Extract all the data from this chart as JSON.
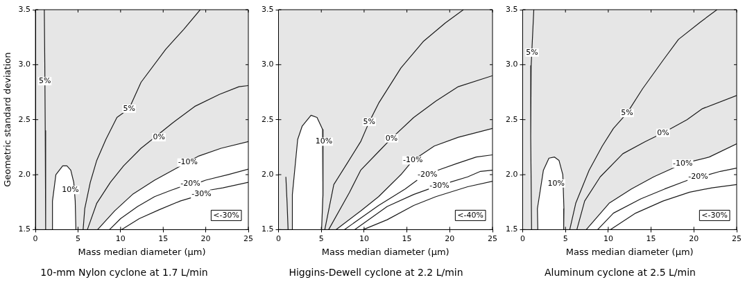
{
  "chart_data": [
    {
      "type": "line",
      "title": "10-mm Nylon cyclone at 1.7 L/min",
      "xlabel": "Mass median diameter (µm)",
      "ylabel": "Geometric standard deviation",
      "xlim": [
        0,
        25
      ],
      "ylim": [
        1.5,
        3.5
      ],
      "xticks": [
        0,
        5,
        10,
        15,
        20,
        25
      ],
      "yticks": [
        {
          "value": 1.5,
          "label": "1.5"
        },
        {
          "value": 2,
          "label": "2.0"
        },
        {
          "value": 2.5,
          "label": "2.5"
        },
        {
          "value": 3,
          "label": "3.0"
        },
        {
          "value": 3.5,
          "label": "3.5"
        }
      ],
      "marker": "none",
      "series": [
        {
          "type": "area",
          "color": "#1a1a1a",
          "x": [
            7.3,
            9.3,
            11.4,
            14,
            16.6,
            19.2,
            21.8,
            25
          ],
          "values": [
            1.5,
            1.67,
            1.82,
            1.95,
            2.06,
            2.17,
            2.24,
            2.3
          ]
        },
        {
          "type": "area",
          "color": "#1a1a1a",
          "x": [
            1.96,
            2.0,
            2.4,
            3.2,
            3.7,
            4.15,
            4.5,
            4.67,
            4.75
          ],
          "values": [
            1.5,
            1.76,
            2.0,
            2.08,
            2.08,
            2.04,
            1.93,
            1.76,
            1.5
          ]
        },
        {
          "color": "#1a1a1a",
          "x": [
            1.04,
            1.1,
            1.15,
            1.2
          ],
          "values": [
            3.5,
            3.0,
            2.4,
            1.5
          ]
        },
        {
          "color": "#1a1a1a",
          "x": [
            5.6,
            5.79,
            6.44,
            7.2,
            8.27,
            9.57,
            11.0,
            12.4,
            15.3,
            17.4,
            19.35
          ],
          "values": [
            1.5,
            1.69,
            1.93,
            2.13,
            2.32,
            2.52,
            2.6,
            2.84,
            3.14,
            3.32,
            3.5
          ]
        },
        {
          "color": "#1a1a1a",
          "x": [
            6.1,
            7.2,
            8.8,
            10.35,
            12.4,
            13.7,
            16.1,
            18.7,
            21.6,
            23.9,
            25
          ],
          "values": [
            1.5,
            1.74,
            1.93,
            2.08,
            2.24,
            2.32,
            2.47,
            2.62,
            2.73,
            2.8,
            2.81
          ]
        },
        {
          "color": "#1a1a1a",
          "x": [
            8.7,
            10,
            12,
            14,
            16,
            17.1,
            18.2,
            19.3,
            20,
            22.6,
            25
          ],
          "values": [
            1.5,
            1.6,
            1.71,
            1.8,
            1.86,
            1.89,
            null,
            1.93,
            1.95,
            2.0,
            2.05
          ]
        },
        {
          "color": "#1a1a1a",
          "x": [
            10.1,
            12.2,
            14.5,
            17,
            18.3,
            19.5,
            20.5,
            22,
            25
          ],
          "values": [
            1.5,
            1.6,
            1.68,
            1.76,
            1.79,
            null,
            1.86,
            1.88,
            1.93
          ]
        }
      ],
      "annotations": [
        {
          "text": "5%",
          "x": 1.1,
          "y": 2.85
        },
        {
          "text": "10%",
          "x": 4.1,
          "y": 1.86
        },
        {
          "text": "5%",
          "x": 11,
          "y": 2.6
        },
        {
          "text": "0%",
          "x": 14.5,
          "y": 2.34
        },
        {
          "text": "-10%",
          "x": 17.9,
          "y": 2.11
        },
        {
          "text": "-20%",
          "x": 18.2,
          "y": 1.92
        },
        {
          "text": "-30%",
          "x": 19.5,
          "y": 1.82
        },
        "<-30%"
      ]
    },
    {
      "type": "line",
      "title": "Higgins-Dewell cyclone at 2.2 L/min",
      "xlabel": "Mass median diameter (µm)",
      "xlim": [
        0,
        25
      ],
      "ylim": [
        1.5,
        3.5
      ],
      "xticks": [
        0,
        5,
        10,
        15,
        20,
        25
      ],
      "yticks": [
        {
          "value": 1.5,
          "label": "1.5"
        },
        {
          "value": 2,
          "label": "2.0"
        },
        {
          "value": 2.5,
          "label": "2.5"
        },
        {
          "value": 3,
          "label": "3.0"
        },
        {
          "value": 3.5,
          "label": "3.5"
        }
      ],
      "marker": "none",
      "series": [
        {
          "type": "area",
          "color": "#1a1a1a",
          "x": [
            6.72,
            9.6,
            11.7,
            14.3,
            15.7,
            18.2,
            21,
            25
          ],
          "values": [
            1.5,
            1.67,
            1.8,
            2.0,
            2.13,
            2.26,
            2.34,
            2.42
          ]
        },
        {
          "type": "area",
          "color": "#1a1a1a",
          "x": [
            1.6,
            1.62,
            2.24,
            2.76,
            3.8,
            4.5,
            5.16,
            5.2,
            5.03
          ],
          "values": [
            1.5,
            1.82,
            2.32,
            2.44,
            2.54,
            2.52,
            2.41,
            1.82,
            1.5
          ]
        },
        {
          "color": "#1a1a1a",
          "x": [
            0.86,
            1.0,
            1.12
          ],
          "values": [
            1.98,
            1.75,
            1.5
          ]
        },
        {
          "color": "#1a1a1a",
          "x": [
            5.41,
            6.46,
            8.0,
            9.6,
            10.6,
            11.7,
            14.3,
            16.9,
            19.5,
            21.6
          ],
          "values": [
            1.5,
            1.91,
            2.1,
            2.3,
            2.48,
            2.65,
            2.97,
            3.21,
            3.38,
            3.5
          ]
        },
        {
          "color": "#1a1a1a",
          "x": [
            5.86,
            8.3,
            9.6,
            11.7,
            13.2,
            15.8,
            18.4,
            21,
            25
          ],
          "values": [
            1.5,
            1.84,
            2.04,
            2.21,
            2.33,
            2.52,
            2.67,
            2.8,
            2.9
          ]
        },
        {
          "color": "#1a1a1a",
          "x": [
            7.7,
            11.7,
            14.8,
            16.2,
            17.4,
            18.6,
            20.8,
            23.1,
            25
          ],
          "values": [
            1.5,
            1.72,
            1.87,
            1.95,
            null,
            2.04,
            2.1,
            2.16,
            2.18
          ]
        },
        {
          "color": "#1a1a1a",
          "x": [
            8.9,
            12.7,
            15.8,
            17.6,
            18.8,
            20,
            22.1,
            23.6,
            25
          ],
          "values": [
            1.5,
            1.71,
            1.82,
            1.87,
            null,
            1.93,
            1.98,
            2.03,
            2.04
          ]
        },
        {
          "color": "#1a1a1a",
          "x": [
            9.9,
            12.7,
            15.8,
            18.4,
            22.1,
            25
          ],
          "values": [
            1.5,
            1.59,
            1.72,
            1.8,
            1.89,
            1.94
          ]
        }
      ],
      "annotations": [
        {
          "text": "10%",
          "x": 5.3,
          "y": 2.3
        },
        {
          "text": "5%",
          "x": 10.6,
          "y": 2.48
        },
        {
          "text": "0%",
          "x": 13.2,
          "y": 2.33
        },
        {
          "text": "-10%",
          "x": 15.7,
          "y": 2.13
        },
        {
          "text": "-20%",
          "x": 17.4,
          "y": 2.0
        },
        {
          "text": "-30%",
          "x": 18.8,
          "y": 1.9
        },
        "<-40%"
      ]
    },
    {
      "type": "line",
      "title": "Aluminum cyclone at 2.5 L/min",
      "xlabel": "Mass median diameter (µm)",
      "xlim": [
        0,
        25
      ],
      "ylim": [
        1.5,
        3.5
      ],
      "xticks": [
        0,
        5,
        10,
        15,
        20,
        25
      ],
      "yticks": [
        {
          "value": 1.5,
          "label": "1.5"
        },
        {
          "value": 2,
          "label": "2.0"
        },
        {
          "value": 2.5,
          "label": "2.5"
        },
        {
          "value": 3,
          "label": "3.0"
        },
        {
          "value": 3.5,
          "label": "3.5"
        }
      ],
      "marker": "none",
      "series": [
        {
          "type": "area",
          "color": "#1a1a1a",
          "x": [
            7.43,
            10.1,
            12.7,
            15.3,
            18.7,
            21.8,
            25
          ],
          "values": [
            1.5,
            1.74,
            1.87,
            1.98,
            2.1,
            2.16,
            2.28
          ]
        },
        {
          "type": "area",
          "color": "#1a1a1a",
          "x": [
            1.77,
            1.72,
            2.42,
            3.07,
            3.72,
            4.24,
            4.69,
            4.82,
            4.79
          ],
          "values": [
            1.5,
            1.69,
            2.04,
            2.15,
            2.16,
            2.13,
            2.0,
            1.69,
            1.5
          ]
        },
        {
          "color": "#1a1a1a",
          "x": [
            1.3,
            0.99,
            0.94,
            1.04
          ],
          "values": [
            3.5,
            2.99,
            2.34,
            1.5
          ]
        },
        {
          "color": "#1a1a1a",
          "x": [
            5.5,
            6.2,
            7.76,
            9.3,
            10.6,
            12.2,
            14,
            16.4,
            18.2,
            20.8,
            22.7
          ],
          "values": [
            1.5,
            1.74,
            2.04,
            2.26,
            2.42,
            2.56,
            2.78,
            3.04,
            3.23,
            3.39,
            3.5
          ]
        },
        {
          "color": "#1a1a1a",
          "x": [
            6.33,
            7.24,
            9.06,
            11.7,
            14.3,
            16.4,
            19.2,
            21,
            25
          ],
          "values": [
            1.5,
            1.76,
            1.98,
            2.19,
            2.3,
            2.38,
            2.5,
            2.6,
            2.72
          ]
        },
        {
          "color": "#1a1a1a",
          "x": [
            8.76,
            10.6,
            13.8,
            16.6,
            19.3,
            20.5,
            21.7,
            23.1,
            25
          ],
          "values": [
            1.5,
            1.65,
            1.78,
            1.87,
            1.95,
            null,
            2.0,
            2.03,
            2.06
          ]
        },
        {
          "color": "#1a1a1a",
          "x": [
            10.24,
            13.2,
            16.4,
            19.5,
            22.1,
            25
          ],
          "values": [
            1.5,
            1.65,
            1.76,
            1.84,
            1.88,
            1.91
          ]
        }
      ],
      "annotations": [
        {
          "text": "5%",
          "x": 1.1,
          "y": 3.11
        },
        {
          "text": "10%",
          "x": 3.9,
          "y": 1.92
        },
        {
          "text": "5%",
          "x": 12.2,
          "y": 2.56
        },
        {
          "text": "0%",
          "x": 16.4,
          "y": 2.38
        },
        {
          "text": "-10%",
          "x": 18.7,
          "y": 2.1
        },
        {
          "text": "-20%",
          "x": 20.5,
          "y": 1.98
        },
        "<-30%"
      ]
    }
  ]
}
